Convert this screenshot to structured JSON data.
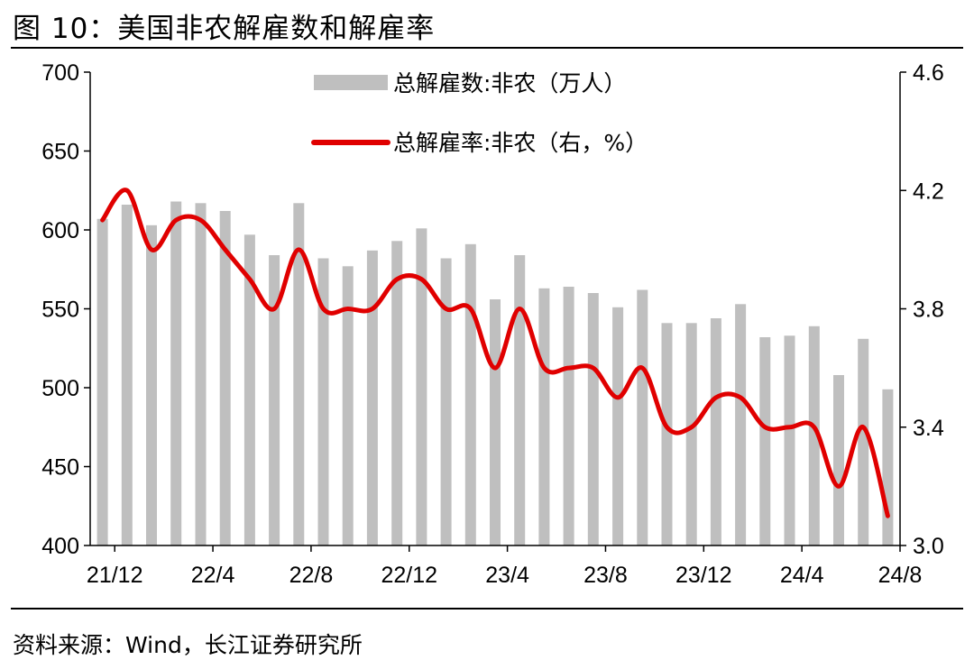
{
  "figure": {
    "title": "图 10：美国非农解雇数和解雇率",
    "source": "资料来源：Wind，长江证券研究所"
  },
  "chart_data": {
    "type": "bar+line",
    "title": "美国非农解雇数和解雇率",
    "x_tick_labels": [
      "21/12",
      "22/4",
      "22/8",
      "22/12",
      "23/4",
      "23/8",
      "23/12",
      "24/4",
      "24/8"
    ],
    "x_tick_months_index": [
      0,
      4,
      8,
      12,
      16,
      20,
      24,
      28,
      32
    ],
    "left_axis": {
      "ylim": [
        400,
        700
      ],
      "ticks": [
        "400",
        "450",
        "500",
        "550",
        "600",
        "650",
        "700"
      ]
    },
    "right_axis": {
      "ylim": [
        3.0,
        4.6
      ],
      "ticks": [
        "3.0",
        "3.4",
        "3.8",
        "4.2",
        "4.6"
      ]
    },
    "series": [
      {
        "name": "总解雇数:非农（万人）",
        "type": "bar",
        "axis": "left",
        "color": "#bfbfbf",
        "values": [
          607,
          616,
          603,
          618,
          617,
          612,
          597,
          584,
          617,
          582,
          577,
          587,
          593,
          601,
          582,
          591,
          556,
          584,
          563,
          564,
          560,
          551,
          562,
          541,
          541,
          544,
          553,
          532,
          533,
          539,
          508,
          531,
          499
        ]
      },
      {
        "name": "总解雇率:非农（右，%）",
        "type": "line",
        "axis": "right",
        "color": "#e00000",
        "values": [
          4.1,
          4.2,
          4.0,
          4.1,
          4.1,
          4.0,
          3.9,
          3.8,
          4.0,
          3.8,
          3.8,
          3.8,
          3.9,
          3.9,
          3.8,
          3.8,
          3.6,
          3.8,
          3.6,
          3.6,
          3.6,
          3.5,
          3.6,
          3.4,
          3.4,
          3.5,
          3.5,
          3.4,
          3.4,
          3.4,
          3.2,
          3.4,
          3.1
        ]
      }
    ],
    "legend": {
      "bar_label": "总解雇数:非农（万人）",
      "line_label": "总解雇率:非农（右，%）",
      "placement": "top-center"
    }
  }
}
